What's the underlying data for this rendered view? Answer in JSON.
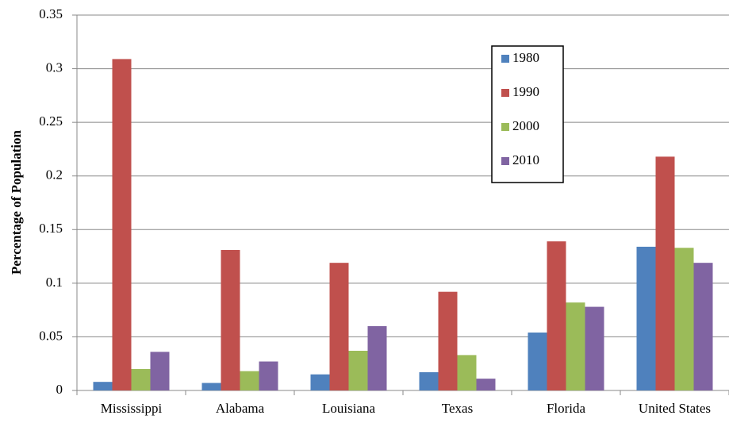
{
  "chart_data": {
    "type": "bar",
    "y_label": "Percentage of Population",
    "categories": [
      "Mississippi",
      "Alabama",
      "Louisiana",
      "Texas",
      "Florida",
      "United States"
    ],
    "series": [
      {
        "name": "1980",
        "color": "#4f81bd",
        "values": [
          0.008,
          0.007,
          0.015,
          0.017,
          0.054,
          0.134
        ]
      },
      {
        "name": "1990",
        "color": "#c0504d",
        "values": [
          0.309,
          0.131,
          0.119,
          0.092,
          0.139,
          0.218
        ]
      },
      {
        "name": "2000",
        "color": "#9bbb59",
        "values": [
          0.02,
          0.018,
          0.037,
          0.033,
          0.082,
          0.133
        ]
      },
      {
        "name": "2010",
        "color": "#8064a2",
        "values": [
          0.036,
          0.027,
          0.06,
          0.011,
          0.078,
          0.119
        ]
      }
    ],
    "ylim": [
      0,
      0.35
    ],
    "yticks": [
      0,
      0.05,
      0.1,
      0.15,
      0.2,
      0.25,
      0.3,
      0.35
    ],
    "grid": true
  }
}
